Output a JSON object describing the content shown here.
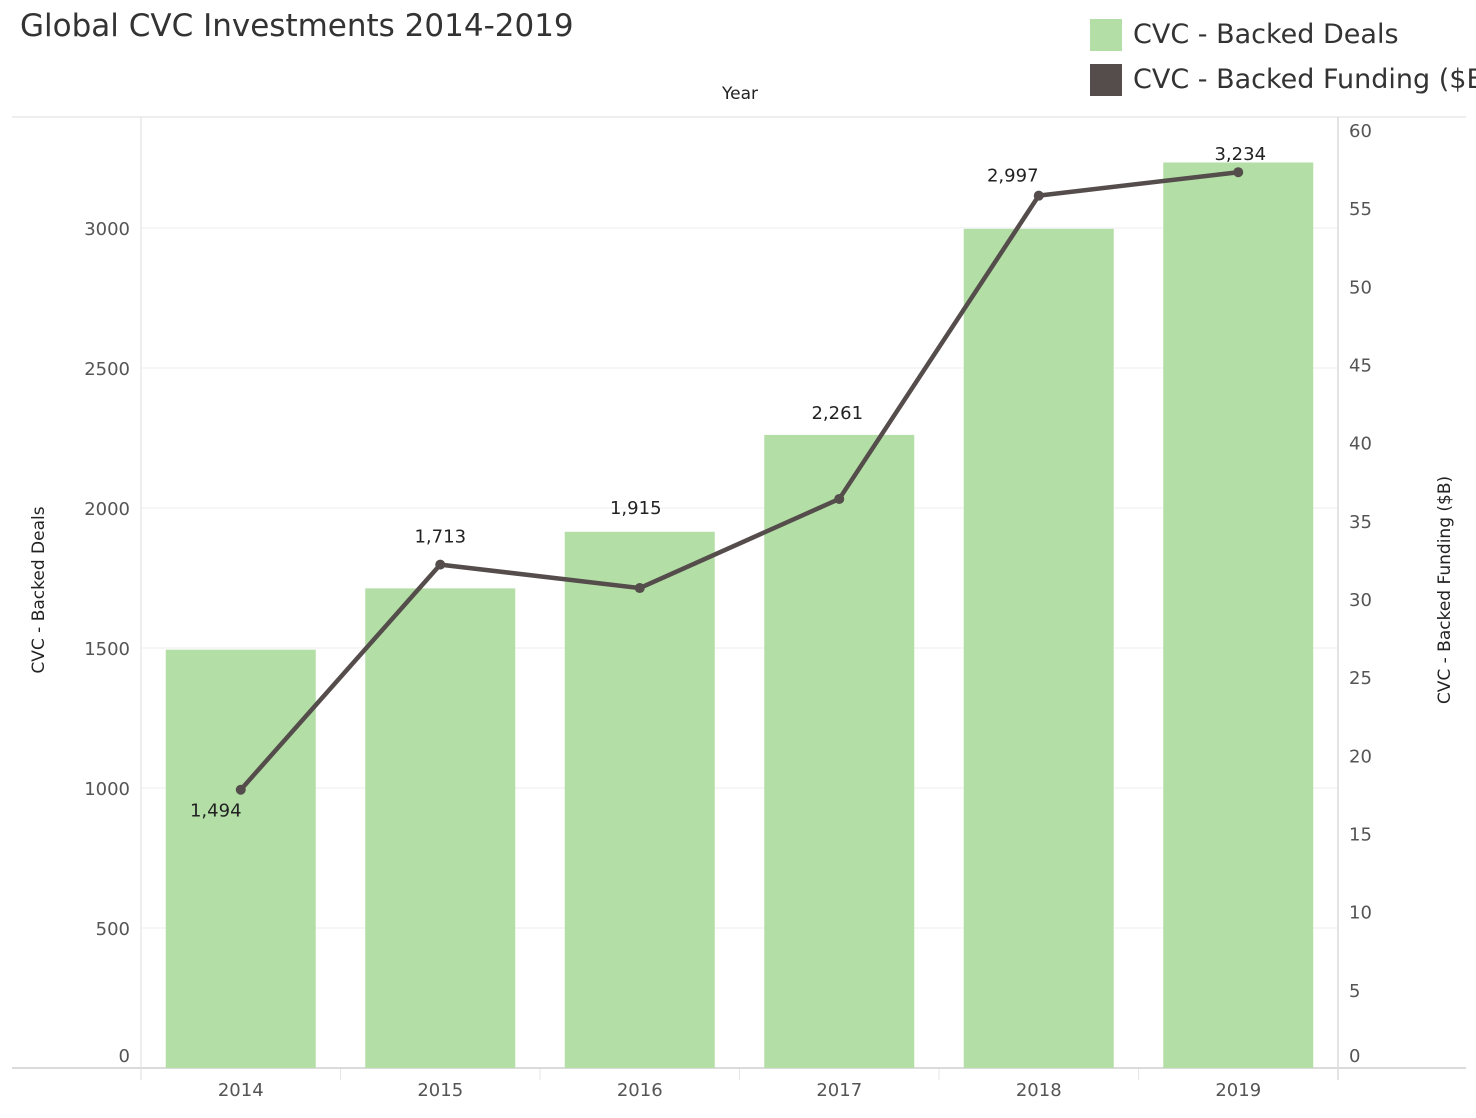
{
  "title": "Global CVC Investments 2014-2019",
  "legend": [
    {
      "label": "CVC - Backed Deals",
      "color": "#b3dfa6"
    },
    {
      "label": "CVC - Backed Funding ($B)",
      "color": "#544d4b"
    }
  ],
  "chart_data": {
    "type": "bar",
    "title": "Global CVC Investments 2014-2019",
    "xlabel": "Year",
    "ylabel": "CVC - Backed Deals",
    "y2label": "CVC - Backed Funding ($B)",
    "categories": [
      "2014",
      "2015",
      "2016",
      "2017",
      "2018",
      "2019"
    ],
    "ylim": [
      0,
      3300
    ],
    "y2lim": [
      0,
      60
    ],
    "y_ticks": [
      "0",
      "500",
      "1000",
      "1500",
      "2000",
      "2500",
      "3000"
    ],
    "y2_ticks": [
      "0",
      "5",
      "10",
      "15",
      "20",
      "25",
      "30",
      "35",
      "40",
      "45",
      "50",
      "55",
      "60"
    ],
    "grid": true,
    "legend_position": "top-right",
    "series": [
      {
        "name": "CVC - Backed Deals",
        "type": "bar",
        "axis": "left",
        "color": "#b3dfa6",
        "values": [
          1494,
          1713,
          1915,
          2261,
          2997,
          3234
        ],
        "labels": [
          "1,494",
          "1,713",
          "1,915",
          "2,261",
          "2,997",
          "3,234"
        ]
      },
      {
        "name": "CVC - Backed Funding ($B)",
        "type": "line",
        "axis": "right",
        "color": "#544d4b",
        "values": [
          17.8,
          32.2,
          30.7,
          36.4,
          55.8,
          57.3
        ]
      }
    ]
  }
}
